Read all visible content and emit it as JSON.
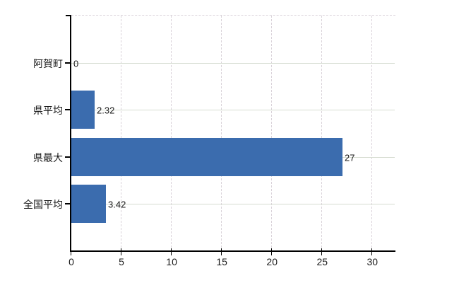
{
  "chart_data": {
    "type": "bar",
    "orientation": "horizontal",
    "title": "",
    "xlabel": "",
    "ylabel": "",
    "categories": [
      "阿賀町",
      "県平均",
      "県最大",
      "全国平均"
    ],
    "values": [
      0,
      2.32,
      27,
      3.42
    ],
    "value_labels": [
      "0",
      "2.32",
      "27",
      "3.42"
    ],
    "x_ticks": [
      0,
      5,
      10,
      15,
      20,
      25,
      30
    ],
    "x_tick_labels": [
      "0",
      "5",
      "10",
      "15",
      "20",
      "25",
      "30"
    ],
    "xlim": [
      0,
      32.3
    ],
    "grid": {
      "vertical_style": "dashed",
      "horizontal_style": "solid",
      "top_border": "dashed"
    },
    "legend_position": "none",
    "colors": {
      "bar": "#3b6cae",
      "axis": "#000000",
      "text": "#1a1a1a",
      "gridline_vertical": "#d9d2d9",
      "gridline_horizontal": "#d6dcd1",
      "background": "#ffffff"
    }
  }
}
